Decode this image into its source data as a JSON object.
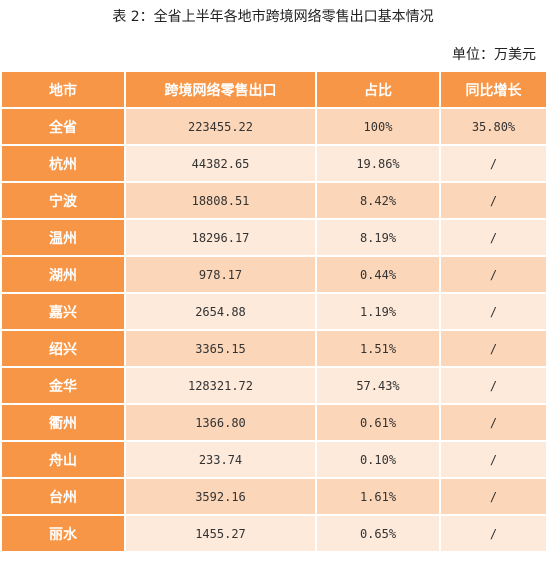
{
  "caption": "表 2：全省上半年各地市跨境网络零售出口基本情况",
  "unit": "单位：万美元",
  "headers": [
    "地市",
    "跨境网络零售出口",
    "占比",
    "同比增长"
  ],
  "rows": [
    {
      "city": "全省",
      "export": "223455.22",
      "share": "100%",
      "growth": "35.80%"
    },
    {
      "city": "杭州",
      "export": "44382.65",
      "share": "19.86%",
      "growth": "/"
    },
    {
      "city": "宁波",
      "export": "18808.51",
      "share": "8.42%",
      "growth": "/"
    },
    {
      "city": "温州",
      "export": "18296.17",
      "share": "8.19%",
      "growth": "/"
    },
    {
      "city": "湖州",
      "export": "978.17",
      "share": "0.44%",
      "growth": "/"
    },
    {
      "city": "嘉兴",
      "export": "2654.88",
      "share": "1.19%",
      "growth": "/"
    },
    {
      "city": "绍兴",
      "export": "3365.15",
      "share": "1.51%",
      "growth": "/"
    },
    {
      "city": "金华",
      "export": "128321.72",
      "share": "57.43%",
      "growth": "/"
    },
    {
      "city": "衢州",
      "export": "1366.80",
      "share": "0.61%",
      "growth": "/"
    },
    {
      "city": "舟山",
      "export": "233.74",
      "share": "0.10%",
      "growth": "/"
    },
    {
      "city": "台州",
      "export": "3592.16",
      "share": "1.61%",
      "growth": "/"
    },
    {
      "city": "丽水",
      "export": "1455.27",
      "share": "0.65%",
      "growth": "/"
    }
  ]
}
